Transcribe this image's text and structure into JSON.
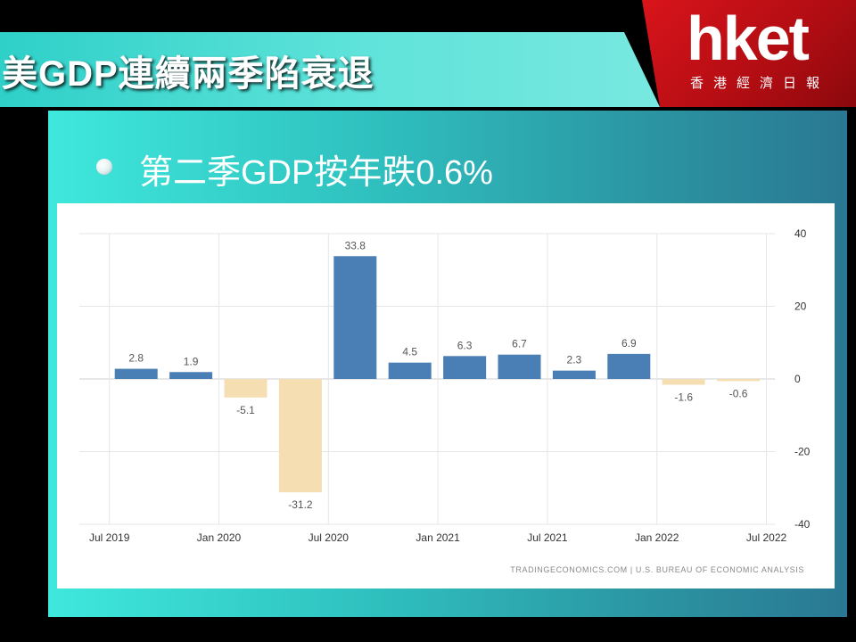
{
  "header": {
    "title": "美GDP連續兩季陷衰退",
    "logo_text": "hket",
    "logo_sub": "香港經濟日報"
  },
  "subtitle": "第二季GDP按年跌0.6%",
  "colors": {
    "positive": "#4a7fb5",
    "negative": "#f6deb3",
    "panel": "#30c8c0",
    "brand_red": "#d9141b"
  },
  "chart_data": {
    "type": "bar",
    "title": "",
    "xlabel": "",
    "ylabel": "",
    "ylim": [
      -40,
      40
    ],
    "yticks": [
      "40",
      "20",
      "0",
      "-20",
      "-40"
    ],
    "y_axis_side": "right",
    "grid": true,
    "legend": "none",
    "categories": [
      "2019 Q3",
      "2019 Q4",
      "2020 Q1",
      "2020 Q2",
      "2020 Q3",
      "2020 Q4",
      "2021 Q1",
      "2021 Q2",
      "2021 Q3",
      "2021 Q4",
      "2022 Q1",
      "2022 Q2"
    ],
    "values": [
      2.8,
      1.9,
      -5.1,
      -31.2,
      33.8,
      4.5,
      6.3,
      6.7,
      2.3,
      6.9,
      -1.6,
      -0.6
    ],
    "value_labels": [
      "2.8",
      "1.9",
      "-5.1",
      "-31.2",
      "33.8",
      "4.5",
      "6.3",
      "6.7",
      "2.3",
      "6.9",
      "-1.6",
      "-0.6"
    ],
    "xticks": [
      "Jul 2019",
      "Jan 2020",
      "Jul 2020",
      "Jan 2021",
      "Jul 2021",
      "Jan 2022",
      "Jul 2022"
    ],
    "source": "TRADINGECONOMICS.COM | U.S. BUREAU OF ECONOMIC ANALYSIS"
  }
}
